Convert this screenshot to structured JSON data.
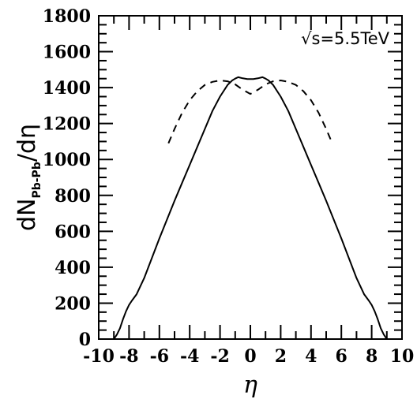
{
  "chart_data": {
    "type": "line",
    "annotation": "√s=5.5TeV",
    "xlabel": "η",
    "ylabel": {
      "prefix": "dN",
      "subscript": "Pb-Pb",
      "suffix": "/dη"
    },
    "xlim": [
      -10,
      10
    ],
    "ylim": [
      0,
      1800
    ],
    "xticks": [
      -10,
      -8,
      -6,
      -4,
      -2,
      0,
      2,
      4,
      6,
      8,
      10
    ],
    "yticks": [
      0,
      200,
      400,
      600,
      800,
      1000,
      1200,
      1400,
      1600,
      1800
    ],
    "grid": false,
    "series": [
      {
        "style": "solid",
        "x": [
          -9.0,
          -8.8,
          -8.6,
          -8.4,
          -8.2,
          -8.0,
          -7.8,
          -7.5,
          -7.0,
          -6.5,
          -6.0,
          -5.5,
          -5.0,
          -4.5,
          -4.0,
          -3.5,
          -3.0,
          -2.5,
          -2.0,
          -1.5,
          -1.2,
          -1.0,
          -0.8,
          -0.5,
          -0.2,
          0.0,
          0.2,
          0.5,
          0.8,
          1.0,
          1.2,
          1.5,
          2.0,
          2.5,
          3.0,
          3.5,
          4.0,
          4.5,
          5.0,
          5.5,
          6.0,
          6.5,
          7.0,
          7.5,
          7.8,
          8.0,
          8.2,
          8.4,
          8.6,
          8.8,
          9.0
        ],
        "y": [
          0,
          25,
          60,
          110,
          155,
          190,
          215,
          250,
          340,
          450,
          560,
          665,
          770,
          870,
          970,
          1070,
          1170,
          1270,
          1350,
          1415,
          1440,
          1450,
          1458,
          1452,
          1448,
          1448,
          1448,
          1452,
          1458,
          1450,
          1440,
          1415,
          1350,
          1270,
          1170,
          1070,
          970,
          870,
          770,
          665,
          560,
          450,
          340,
          250,
          215,
          190,
          155,
          110,
          60,
          25,
          0
        ]
      },
      {
        "style": "dashed",
        "x": [
          -5.4,
          -5.0,
          -4.5,
          -4.0,
          -3.5,
          -3.0,
          -2.5,
          -2.0,
          -1.5,
          -1.0,
          -0.5,
          0.0,
          0.5,
          1.0,
          1.5,
          2.0,
          2.5,
          3.0,
          3.5,
          4.0,
          4.5,
          5.0,
          5.4
        ],
        "y": [
          1090,
          1170,
          1260,
          1330,
          1380,
          1415,
          1432,
          1440,
          1435,
          1418,
          1388,
          1365,
          1388,
          1418,
          1435,
          1440,
          1432,
          1415,
          1380,
          1330,
          1260,
          1170,
          1090
        ]
      }
    ]
  }
}
